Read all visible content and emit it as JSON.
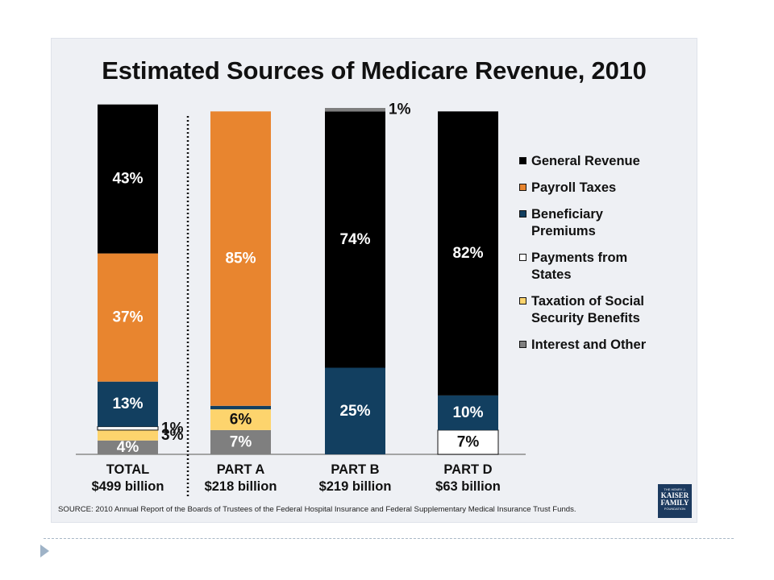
{
  "chart_data": {
    "type": "bar",
    "stacked": true,
    "title": "Estimated Sources of Medicare Revenue, 2010",
    "categories": [
      "TOTAL",
      "PART A",
      "PART B",
      "PART D"
    ],
    "category_subtitles": [
      "$499 billion",
      "$218 billion",
      "$219 billion",
      "$63 billion"
    ],
    "ylim": [
      0,
      100
    ],
    "unit": "%",
    "grid": false,
    "legend_position": "right",
    "series": [
      {
        "name": "Interest and Other",
        "color": "#7f7f7f",
        "values": [
          4,
          7,
          0,
          0
        ],
        "labels": [
          "4%",
          "7%",
          "",
          ""
        ]
      },
      {
        "name": "Taxation of Social Security Benefits",
        "color": "#fdd46d",
        "values": [
          3,
          6,
          0,
          0
        ],
        "labels": [
          "3%",
          "6%",
          "",
          ""
        ]
      },
      {
        "name": "Payments from States",
        "color": "#ffffff",
        "values": [
          1,
          0,
          0,
          7
        ],
        "labels": [
          "1%",
          "",
          "",
          "7%"
        ]
      },
      {
        "name": "Beneficiary Premiums",
        "color": "#123f60",
        "values": [
          13,
          1,
          25,
          10
        ],
        "labels": [
          "13%",
          "",
          "25%",
          "10%"
        ]
      },
      {
        "name": "Payroll Taxes",
        "color": "#e8852f",
        "values": [
          37,
          85,
          0,
          0
        ],
        "labels": [
          "37%",
          "85%",
          "",
          ""
        ]
      },
      {
        "name": "General Revenue",
        "color": "#000000",
        "values": [
          43,
          0,
          74,
          82
        ],
        "labels": [
          "43%",
          "",
          "74%",
          "82%"
        ]
      },
      {
        "name": "",
        "color": "#7f7f7f",
        "values": [
          0,
          0,
          1,
          0
        ],
        "labels": [
          "",
          "",
          "1%",
          ""
        ]
      }
    ],
    "legend": [
      {
        "label": "General Revenue",
        "color": "#000000"
      },
      {
        "label": "Payroll Taxes",
        "color": "#e8852f"
      },
      {
        "label": "Beneficiary Premiums",
        "color": "#123f60"
      },
      {
        "label": "Payments from States",
        "color": "#ffffff"
      },
      {
        "label": "Taxation of Social Security Benefits",
        "color": "#fdd46d"
      },
      {
        "label": "Interest and Other",
        "color": "#7f7f7f"
      }
    ]
  },
  "legend_lines": [
    [
      "General Revenue"
    ],
    [
      "Payroll Taxes"
    ],
    [
      "Beneficiary",
      "Premiums"
    ],
    [
      "Payments from",
      "States"
    ],
    [
      "Taxation of Social",
      "Security Benefits"
    ],
    [
      "Interest and Other"
    ]
  ],
  "source": "SOURCE: 2010 Annual Report of the Boards of Trustees of the Federal Hospital Insurance and Federal Supplementary Medical Insurance Trust Funds.",
  "logo": {
    "top": "THE HENRY J.",
    "line1": "KAISER",
    "line2": "FAMILY",
    "bottom": "FOUNDATION"
  },
  "colors": {
    "background": "#eef0f4",
    "text": "#111111",
    "logo": "#1c3a5f",
    "divider": "#a9b8c6"
  }
}
